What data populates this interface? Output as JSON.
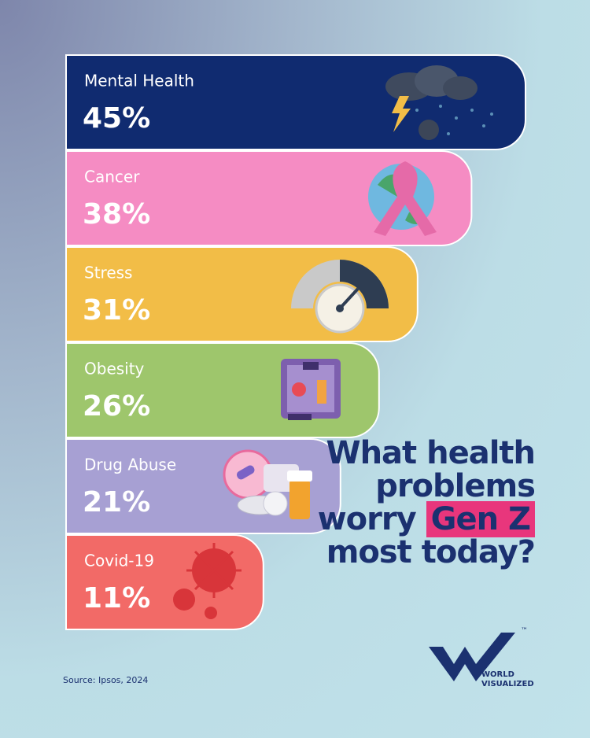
{
  "chart_data": {
    "type": "bar",
    "title_before": "What health problems worry",
    "title_highlight": "Gen Z",
    "title_after": "most today?",
    "categories": [
      "Mental Health",
      "Cancer",
      "Stress",
      "Obesity",
      "Drug Abuse",
      "Covid-19"
    ],
    "values": [
      45,
      38,
      31,
      26,
      21,
      11
    ],
    "value_labels": [
      "45%",
      "38%",
      "31%",
      "26%",
      "21%",
      "11%"
    ],
    "colors": [
      "#102b70",
      "#f58cc3",
      "#f2bd47",
      "#9ec66c",
      "#a7a0d3",
      "#f26a67"
    ],
    "source": "Source: Ipsos, 2024",
    "logo": [
      "WORLD",
      "VISUALIZED"
    ],
    "trademark": "™"
  }
}
